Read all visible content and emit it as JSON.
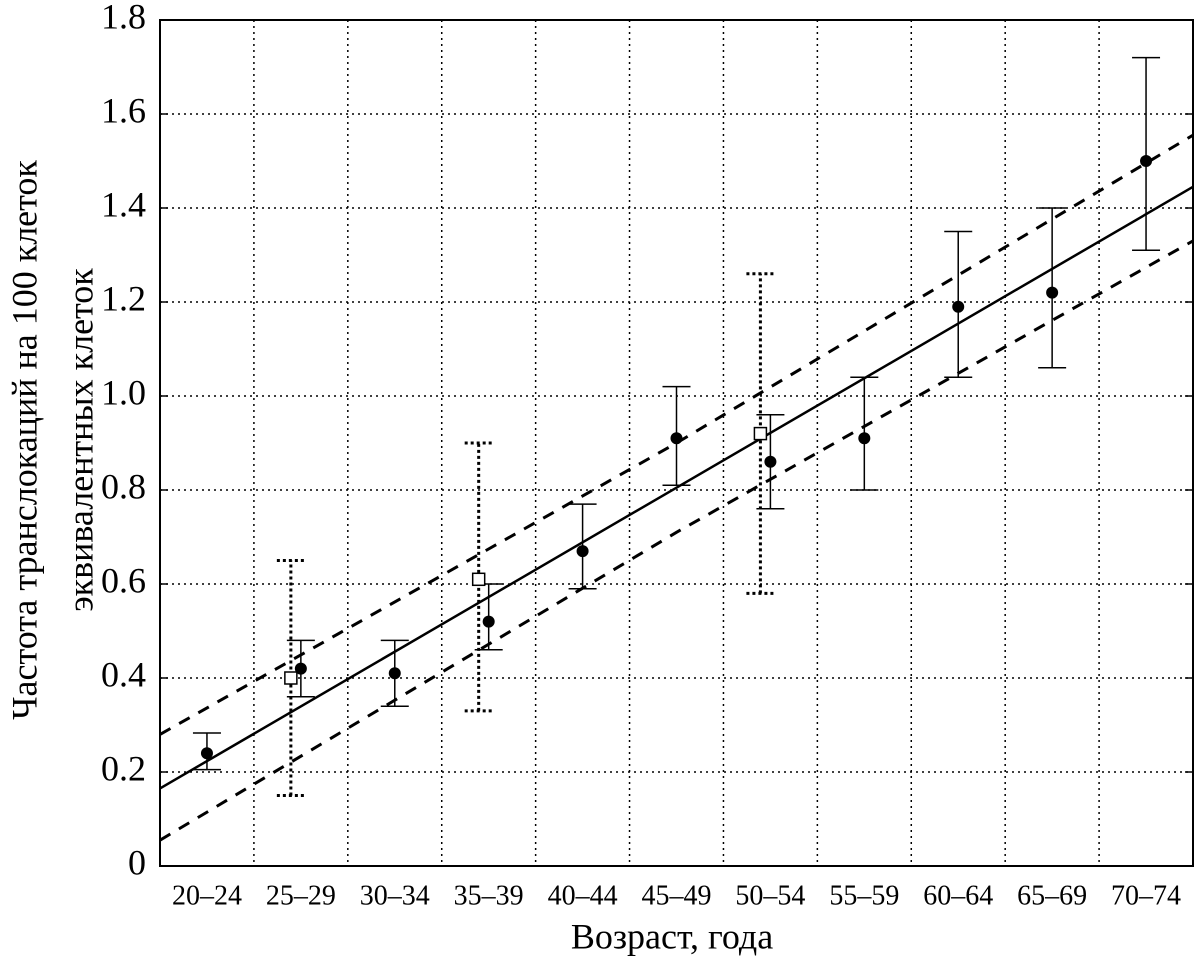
{
  "chart_data": {
    "type": "errorbar",
    "x_label": "Возраст, года",
    "y_label": [
      "Частота транслокаций на 100 клеток",
      "эквивалентных клеток"
    ],
    "categories": [
      "20–24",
      "25–29",
      "30–34",
      "35–39",
      "40–44",
      "45–49",
      "50–54",
      "55–59",
      "60–64",
      "65–69",
      "70–74"
    ],
    "ylim": [
      0,
      1.8
    ],
    "yticks": [
      0,
      0.2,
      0.4,
      0.6,
      0.8,
      {
        "value": 1.0,
        "label": "1.0"
      },
      1.2,
      1.4,
      1.6,
      1.8
    ],
    "grid": true,
    "series": [
      {
        "marker": "circle",
        "color": "#000",
        "values": [
          0.24,
          0.42,
          0.41,
          0.52,
          0.67,
          0.91,
          0.86,
          0.91,
          1.19,
          1.22,
          1.5
        ],
        "lower": [
          0.205,
          0.36,
          0.34,
          0.46,
          0.59,
          0.81,
          0.76,
          0.8,
          1.04,
          1.06,
          1.31
        ],
        "upper": [
          0.283,
          0.48,
          0.48,
          0.6,
          0.77,
          1.02,
          0.96,
          1.04,
          1.35,
          1.4,
          1.72
        ]
      },
      {
        "marker": "square",
        "color": "#000",
        "values": [
          null,
          0.4,
          null,
          0.61,
          null,
          null,
          0.92,
          null,
          null,
          null,
          null
        ],
        "lower": [
          null,
          0.15,
          null,
          0.33,
          null,
          null,
          0.58,
          null,
          null,
          null,
          null
        ],
        "upper": [
          null,
          0.65,
          null,
          0.9,
          null,
          null,
          1.26,
          null,
          null,
          null,
          null
        ]
      }
    ],
    "fit": {
      "values": [
        0.165,
        0.805,
        1.445
      ],
      "upper": [
        0.28,
        0.9,
        1.555
      ],
      "lower": [
        0.055,
        0.71,
        1.33
      ]
    }
  }
}
